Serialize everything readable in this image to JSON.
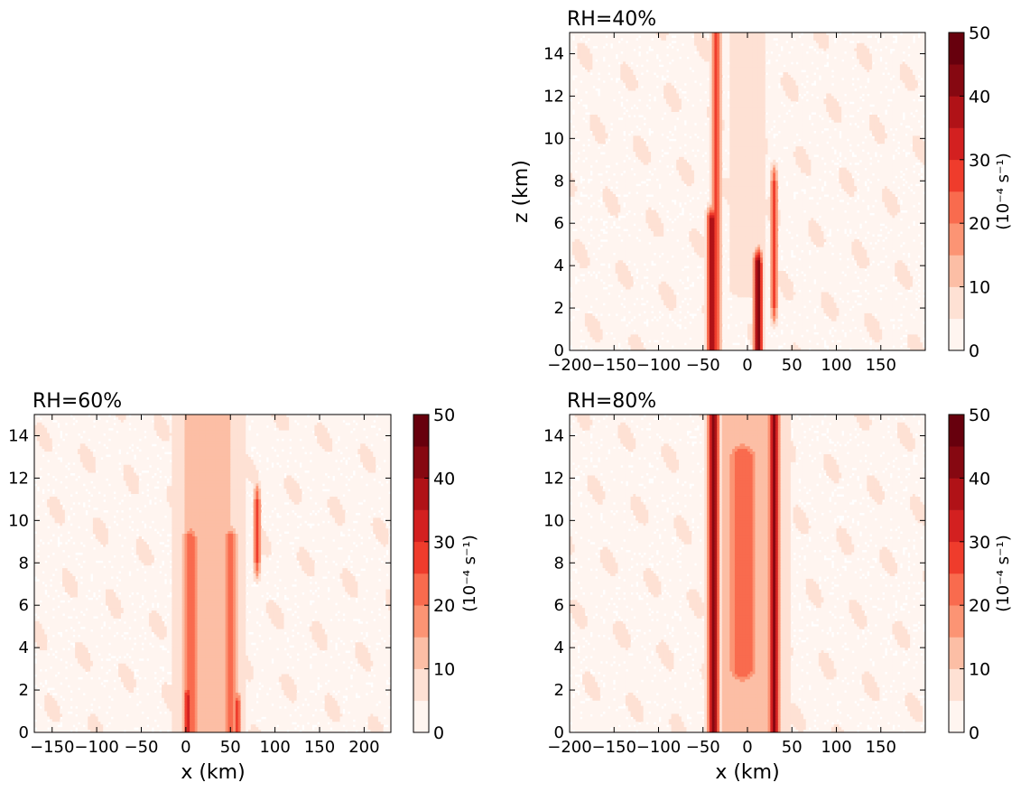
{
  "chart_data": [
    {
      "type": "heatmap",
      "title": "RH=40%",
      "xlabel": "",
      "ylabel": "z (km)",
      "xlim": [
        -200,
        200
      ],
      "ylim": [
        0,
        15
      ],
      "xticks": [
        -200,
        -150,
        -100,
        -50,
        0,
        50,
        100,
        150
      ],
      "xtick_labels": [
        "−200",
        "−150",
        "−100",
        "−50",
        "0",
        "50",
        "100",
        "150"
      ],
      "yticks": [
        0,
        2,
        4,
        6,
        8,
        10,
        12,
        14
      ],
      "ytick_labels": [
        "0",
        "2",
        "4",
        "6",
        "8",
        "10",
        "12",
        "14"
      ],
      "colorbar": {
        "label": "(10⁻⁴ s⁻¹)",
        "levels": [
          0,
          5,
          10,
          15,
          20,
          25,
          30,
          35,
          40,
          45,
          50
        ],
        "ticks": [
          "0",
          "10",
          "20",
          "30",
          "40",
          "50"
        ]
      },
      "features": [
        {
          "x": -35,
          "z0": 0,
          "z1": 15,
          "width": 10,
          "peak": 30
        },
        {
          "x": -40,
          "z0": 0,
          "z1": 6,
          "width": 12,
          "peak": 40
        },
        {
          "x": 12,
          "z0": 0,
          "z1": 4,
          "width": 10,
          "peak": 45
        },
        {
          "x": 30,
          "z0": 2,
          "z1": 8,
          "width": 8,
          "peak": 25
        },
        {
          "x": 0,
          "z0": 3,
          "z1": 15,
          "width": 60,
          "peak": 8
        }
      ]
    },
    {
      "type": "heatmap",
      "title": "RH=60%",
      "xlabel": "x (km)",
      "ylabel": "",
      "xlim": [
        -170,
        230
      ],
      "ylim": [
        0,
        15
      ],
      "xticks": [
        -150,
        -100,
        -50,
        0,
        50,
        100,
        150,
        200
      ],
      "xtick_labels": [
        "−150",
        "−100",
        "−50",
        "0",
        "50",
        "100",
        "150",
        "200"
      ],
      "yticks": [
        0,
        2,
        4,
        6,
        8,
        10,
        12,
        14
      ],
      "ytick_labels": [
        "0",
        "2",
        "4",
        "6",
        "8",
        "10",
        "12",
        "14"
      ],
      "colorbar": {
        "label": "(10⁻⁴ s⁻¹)",
        "levels": [
          0,
          5,
          10,
          15,
          20,
          25,
          30,
          35,
          40,
          45,
          50
        ],
        "ticks": [
          "0",
          "10",
          "20",
          "30",
          "40",
          "50"
        ]
      },
      "features": [
        {
          "x": 25,
          "z0": 0,
          "z1": 15,
          "width": 80,
          "peak": 15
        },
        {
          "x": 5,
          "z0": 0,
          "z1": 9,
          "width": 20,
          "peak": 25
        },
        {
          "x": 50,
          "z0": 0,
          "z1": 9,
          "width": 18,
          "peak": 25
        },
        {
          "x": 2,
          "z0": 0,
          "z1": 1.5,
          "width": 10,
          "peak": 35
        },
        {
          "x": 58,
          "z0": 0,
          "z1": 1.2,
          "width": 8,
          "peak": 30
        },
        {
          "x": 80,
          "z0": 8,
          "z1": 11,
          "width": 8,
          "peak": 25
        }
      ]
    },
    {
      "type": "heatmap",
      "title": "RH=80%",
      "xlabel": "x (km)",
      "ylabel": "",
      "xlim": [
        -200,
        200
      ],
      "ylim": [
        0,
        15
      ],
      "xticks": [
        -200,
        -150,
        -100,
        -50,
        0,
        50,
        100,
        150
      ],
      "xtick_labels": [
        "−200",
        "−150",
        "−100",
        "−50",
        "0",
        "50",
        "100",
        "150"
      ],
      "yticks": [
        0,
        2,
        4,
        6,
        8,
        10,
        12,
        14
      ],
      "ytick_labels": [
        "0",
        "2",
        "4",
        "6",
        "8",
        "10",
        "12",
        "14"
      ],
      "colorbar": {
        "label": "(10⁻⁴ s⁻¹)",
        "levels": [
          0,
          5,
          10,
          15,
          20,
          25,
          30,
          35,
          40,
          45,
          50
        ],
        "ticks": [
          "0",
          "10",
          "20",
          "30",
          "40",
          "50"
        ]
      },
      "features": [
        {
          "x": 0,
          "z0": 0,
          "z1": 15,
          "width": 90,
          "peak": 15
        },
        {
          "x": -38,
          "z0": 0,
          "z1": 15,
          "width": 12,
          "peak": 45
        },
        {
          "x": 30,
          "z0": 0,
          "z1": 15,
          "width": 12,
          "peak": 40
        },
        {
          "x": -5,
          "z0": 3,
          "z1": 13,
          "width": 40,
          "peak": 25
        }
      ]
    }
  ]
}
